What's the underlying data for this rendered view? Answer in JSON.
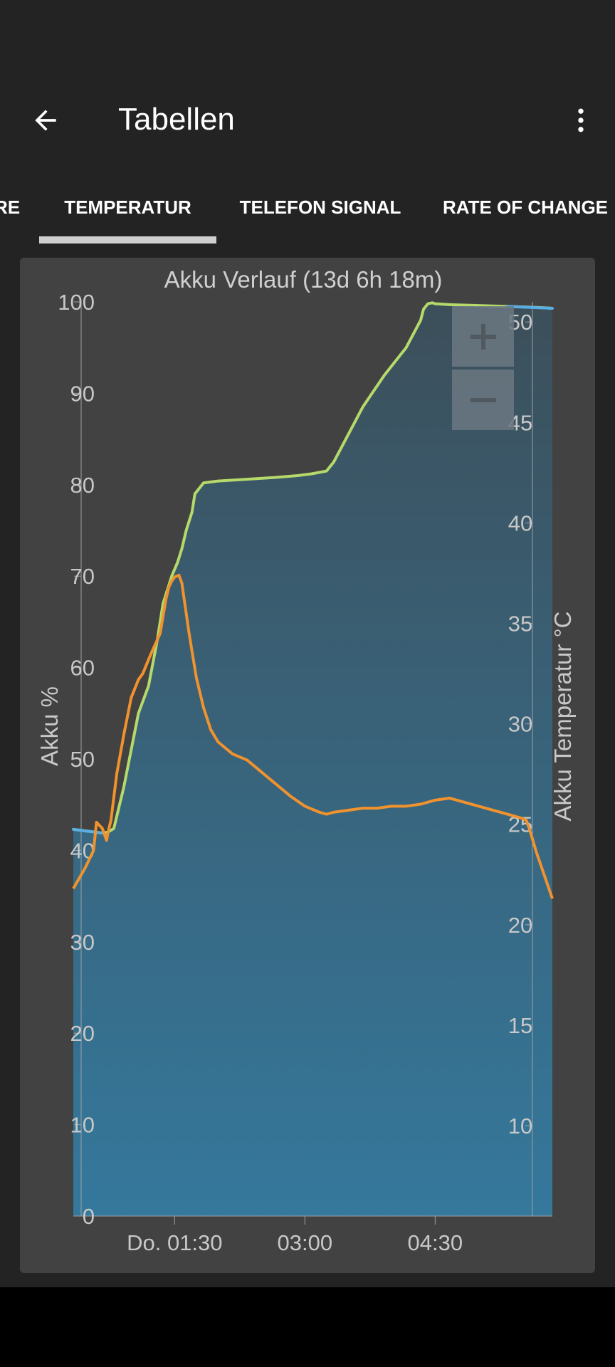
{
  "toolbar": {
    "title": "Tabellen",
    "back_icon": "arrow-left-icon",
    "menu_icon": "more-vert-icon"
  },
  "tabs": [
    {
      "label": "RE",
      "selected": false
    },
    {
      "label": "TEMPERATUR",
      "selected": true
    },
    {
      "label": "TELEFON SIGNAL",
      "selected": false
    },
    {
      "label": "RATE OF CHANGE",
      "selected": false
    }
  ],
  "zoom": {
    "in_icon": "plus-icon",
    "out_icon": "minus-icon"
  },
  "colors": {
    "battery_line": "#b5d96a",
    "battery_line_discharge": "#5aaee6",
    "temperature_line": "#f0922e",
    "fill_top": "#3c4f5a",
    "fill_bottom": "#35789c"
  },
  "chart_data": {
    "type": "line",
    "title": "Akku Verlauf (13d 6h 18m)",
    "ylabel": "Akku %",
    "y2label": "Akku Temperatur °C",
    "xticks": [
      "Do. 01:30",
      "03:00",
      "04:30"
    ],
    "yticks": [
      "0",
      "10",
      "20",
      "30",
      "40",
      "50",
      "60",
      "70",
      "80",
      "90",
      "100"
    ],
    "y2ticks": [
      "10",
      "15",
      "20",
      "25",
      "30",
      "35",
      "40",
      "45",
      "50"
    ],
    "ylim": [
      0,
      100
    ],
    "y2lim": [
      5.5,
      51
    ],
    "x_unit": "minutes from start (start ≈ 00:20)",
    "xlim": [
      0,
      331
    ],
    "grid": false,
    "series": [
      {
        "name": "Akku %",
        "color": "#b5d96a",
        "x": [
          0,
          20,
          24,
          28,
          35,
          40,
          45,
          52,
          58,
          62,
          68,
          72,
          75,
          78,
          80,
          82,
          84,
          90,
          100,
          120,
          140,
          155,
          165,
          175,
          180,
          185,
          190,
          195,
          200,
          215,
          230,
          240,
          242,
          245,
          248,
          250,
          260,
          280,
          300,
          320,
          331
        ],
        "y": [
          42.3,
          41.9,
          42.0,
          42.4,
          47,
          51,
          55,
          58,
          63,
          67,
          70,
          71.5,
          73,
          75,
          76,
          77,
          79,
          80.2,
          80.4,
          80.6,
          80.8,
          81,
          81.2,
          81.5,
          82.5,
          84,
          85.5,
          87,
          88.5,
          92,
          95,
          98,
          99.2,
          99.8,
          99.9,
          99.8,
          99.7,
          99.6,
          99.5,
          99.4,
          99.3
        ]
      },
      {
        "name": "Akku Temperatur °C",
        "color": "#f0922e",
        "x": [
          0,
          8,
          14,
          16,
          20,
          22,
          23,
          24,
          26,
          30,
          35,
          40,
          45,
          48,
          52,
          55,
          60,
          64,
          66,
          68,
          70,
          73,
          75,
          80,
          85,
          90,
          95,
          100,
          105,
          110,
          120,
          130,
          140,
          150,
          160,
          170,
          175,
          180,
          190,
          200,
          210,
          220,
          230,
          240,
          250,
          260,
          270,
          280,
          290,
          300,
          310,
          313,
          315,
          320,
          331
        ],
        "y": [
          21.8,
          22.8,
          23.7,
          25.1,
          24.8,
          24.4,
          24.2,
          24.6,
          25.2,
          27.5,
          29.5,
          31.3,
          32.2,
          32.5,
          33.2,
          33.7,
          34.5,
          36.2,
          36.8,
          37.1,
          37.3,
          37.4,
          37.0,
          34.5,
          32.3,
          30.8,
          29.7,
          29.1,
          28.8,
          28.5,
          28.2,
          27.6,
          27.0,
          26.4,
          25.9,
          25.6,
          25.5,
          25.6,
          25.7,
          25.8,
          25.8,
          25.9,
          25.9,
          26.0,
          26.2,
          26.3,
          26.1,
          25.9,
          25.7,
          25.5,
          25.3,
          25.2,
          24.8,
          23.6,
          21.3
        ]
      }
    ],
    "discharge_segments": [
      {
        "x": [
          0,
          20
        ],
        "y": [
          42.3,
          41.9
        ]
      },
      {
        "x": [
          300,
          331
        ],
        "y": [
          99.5,
          99.3
        ]
      }
    ]
  }
}
